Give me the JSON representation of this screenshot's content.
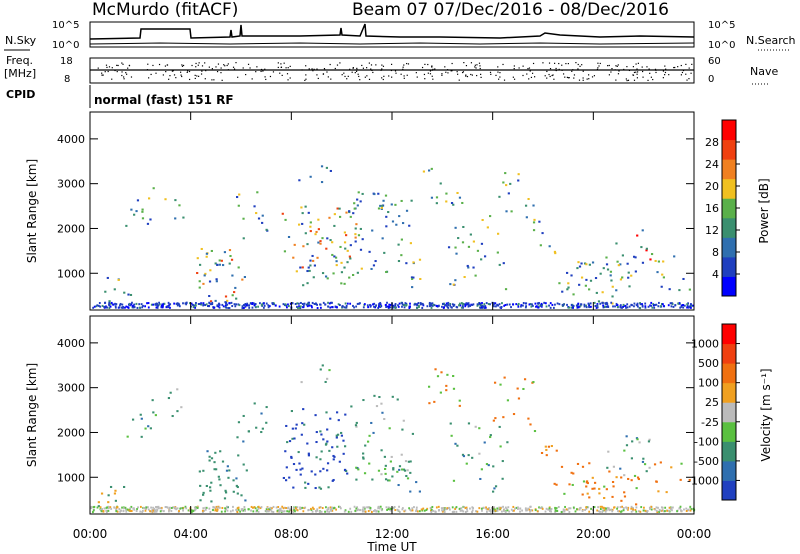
{
  "header": {
    "station": "McMurdo (fitACF)",
    "beam_info": "Beam 07  07/Dec/2016 - 08/Dec/2016"
  },
  "side_labels": {
    "nsky": "N.Sky",
    "freq_line1": "Freq.",
    "freq_line2": "[MHz]",
    "cpid": "CPID",
    "nsearch": "N.Search",
    "nave": "Nave",
    "cpid_value": "normal (fast) 151 RF"
  },
  "noise_axis": {
    "left_top": "10^5",
    "left_bottom": "10^0",
    "right_top": "10^5",
    "right_bottom": "10^0"
  },
  "freq_axis": {
    "left_top": "18",
    "left_bottom": "8",
    "right_top": "60",
    "right_bottom": "0"
  },
  "colors": {
    "power_scale": [
      "#0000ff",
      "#1f3fbf",
      "#2f6faf",
      "#3a8f6f",
      "#5ab04a",
      "#f0c020",
      "#f08020",
      "#f04010",
      "#ff0000"
    ],
    "velocity_scale": [
      "#2040c0",
      "#2f6faf",
      "#3a8f6f",
      "#5ac040",
      "#bbbbbb",
      "#f0a020",
      "#f07010",
      "#f04010",
      "#ff0000"
    ]
  },
  "chart_data": [
    {
      "type": "heatmap",
      "panel": "power",
      "ylabel": "Slant Range [km]",
      "ylim": [
        180,
        4600
      ],
      "yticks": [
        "1000",
        "2000",
        "3000",
        "4000"
      ],
      "xlim": [
        "00:00",
        "24:00"
      ],
      "colorbar": {
        "label": "Power [dB]",
        "ticks": [
          "4",
          "8",
          "12",
          "16",
          "20",
          "24",
          "28"
        ],
        "range": [
          0,
          30
        ]
      }
    },
    {
      "type": "heatmap",
      "panel": "velocity",
      "ylabel": "Slant Range [km]",
      "ylim": [
        180,
        4600
      ],
      "yticks": [
        "1000",
        "2000",
        "3000",
        "4000"
      ],
      "xlabel": "Time UT",
      "xticks": [
        "00:00",
        "04:00",
        "08:00",
        "12:00",
        "16:00",
        "20:00",
        "00:00"
      ],
      "xlim": [
        "00:00",
        "24:00"
      ],
      "colorbar": {
        "label": "Velocity [m s⁻¹]",
        "ticks": [
          "1000",
          "500",
          "100",
          "25",
          "-25",
          "-100",
          "-500",
          "-1000"
        ]
      }
    }
  ]
}
